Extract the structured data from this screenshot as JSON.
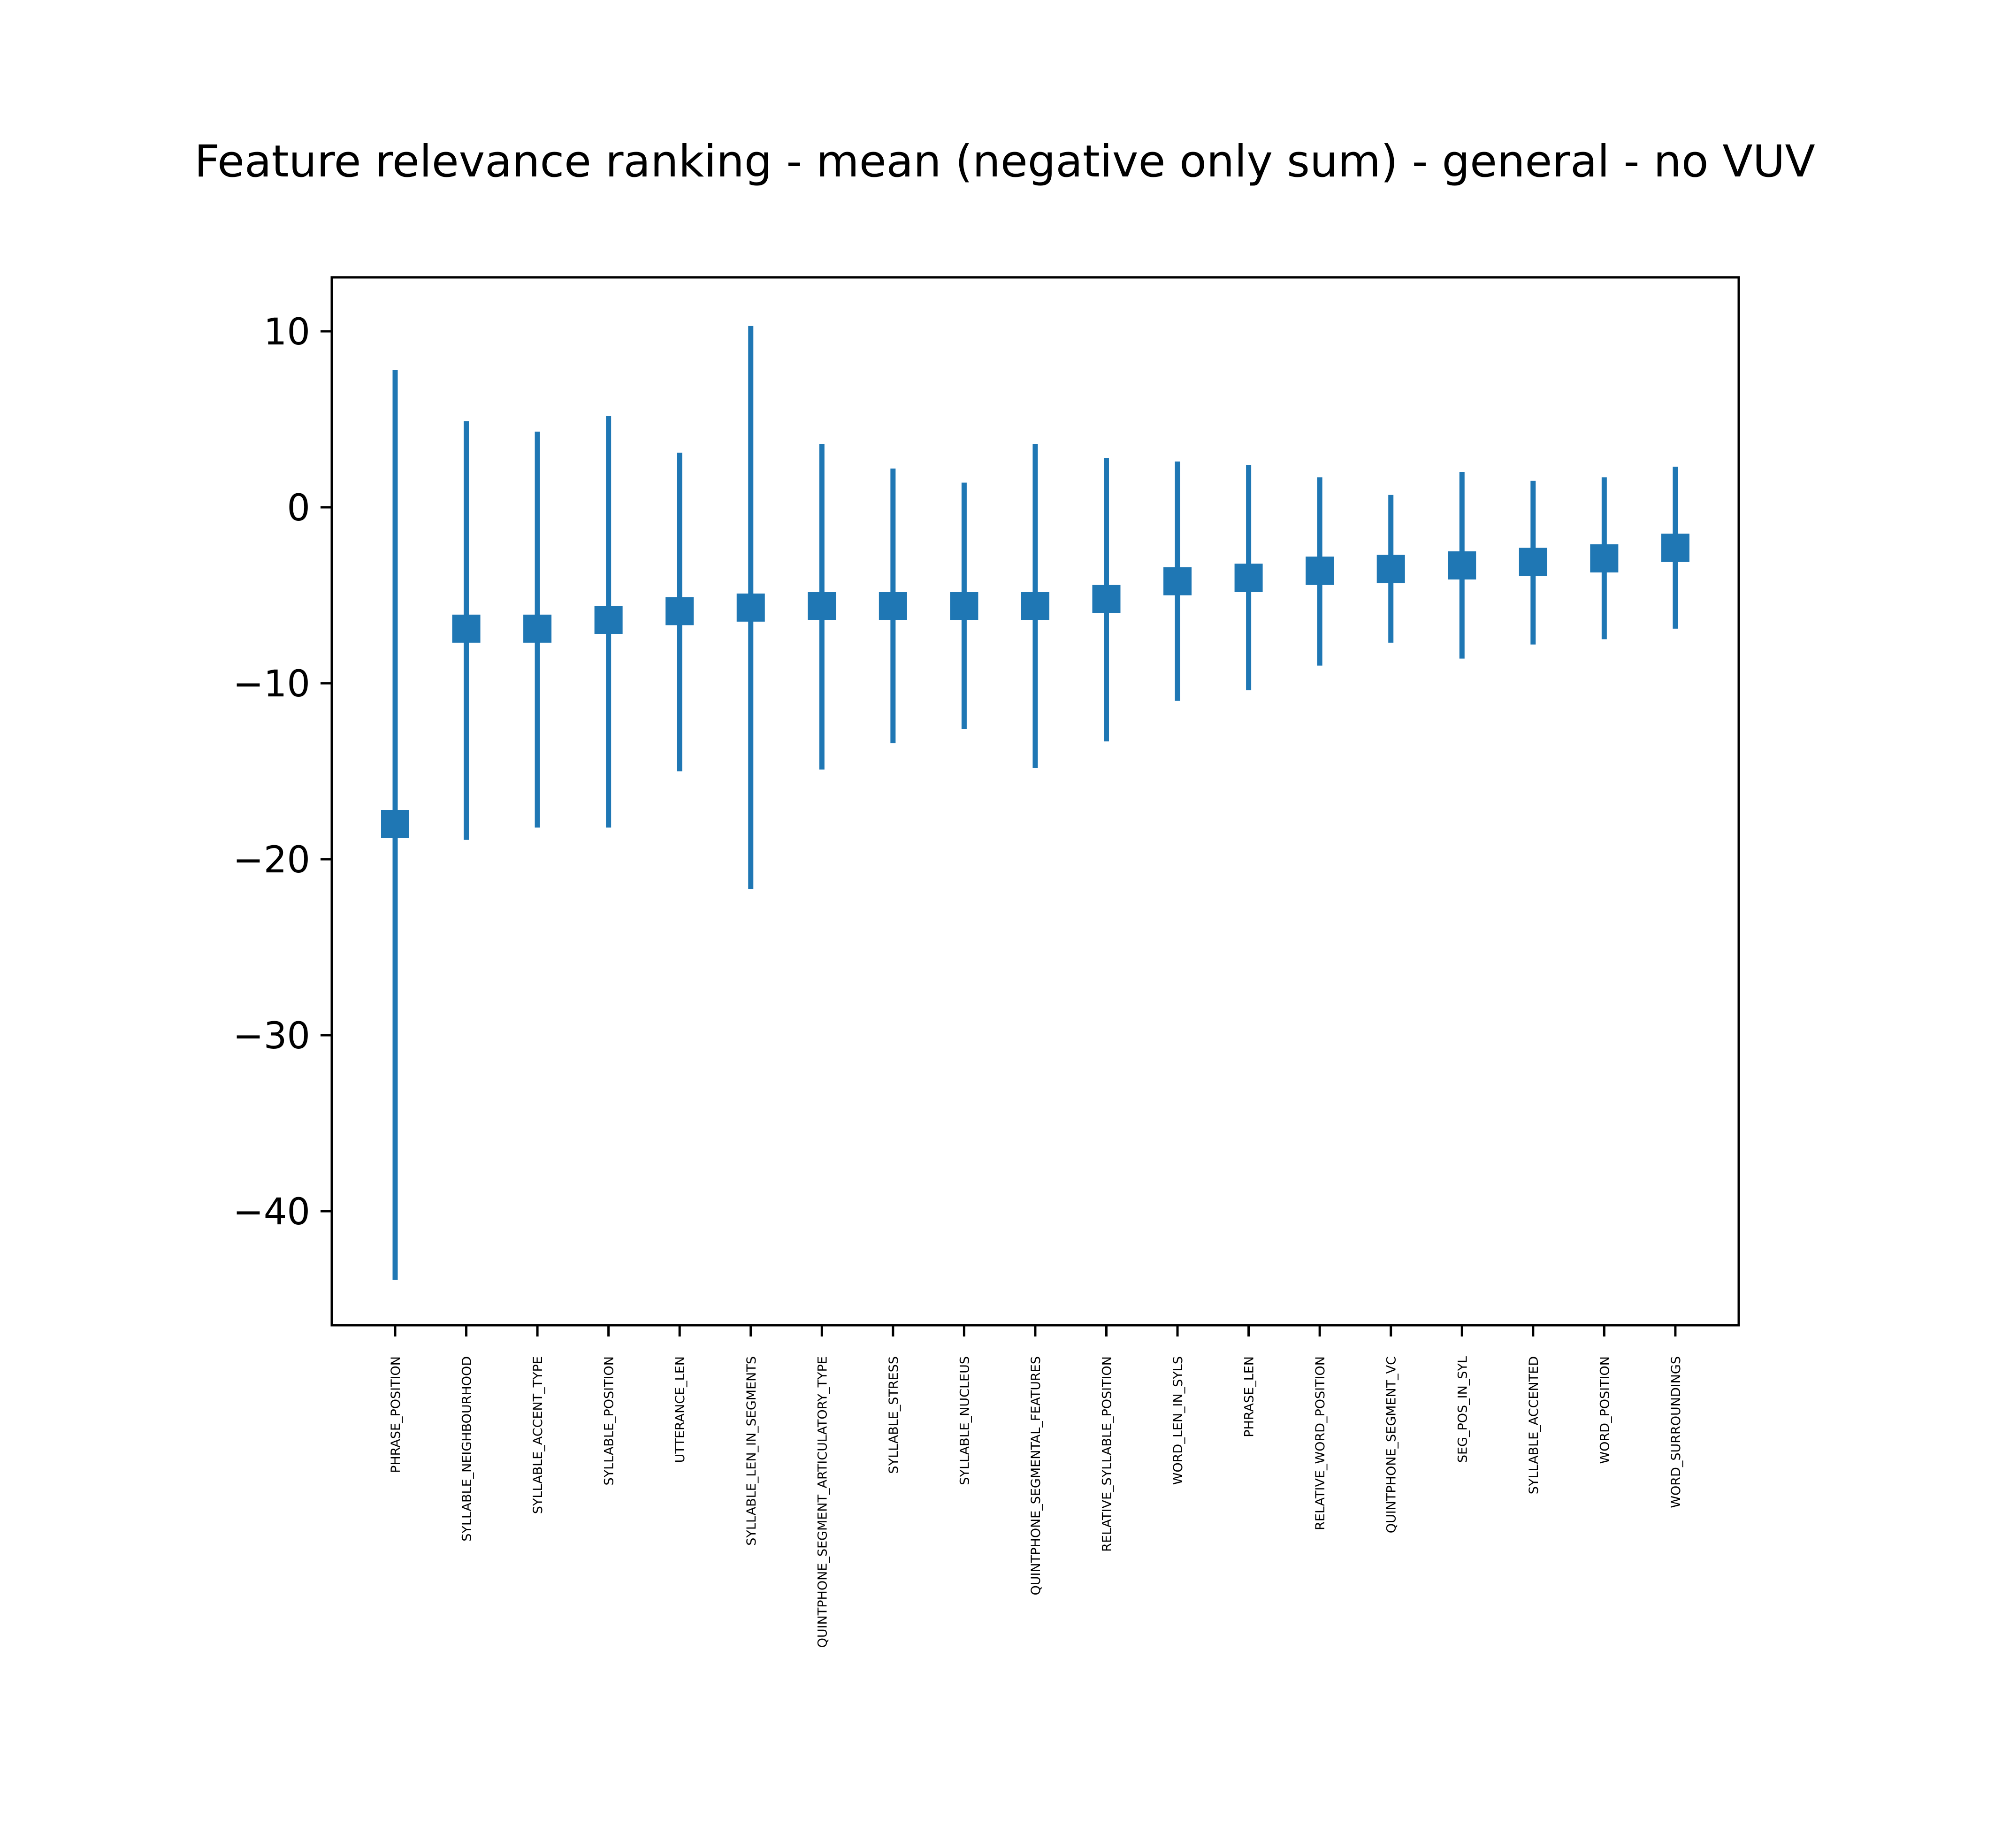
{
  "chart_data": {
    "type": "errorbar",
    "title": "Feature relevance ranking - mean (negative only sum) - general - no VUV",
    "xlabel": "",
    "ylabel": "",
    "ylim": [
      -46.5,
      13.1
    ],
    "yticks": [
      10,
      0,
      -10,
      -20,
      -30,
      -40
    ],
    "ytick_labels": [
      "10",
      "0",
      "−10",
      "−20",
      "−30",
      "−40"
    ],
    "grid": false,
    "color": "#1f77b4",
    "categories": [
      "PHRASE_POSITION",
      "SYLLABLE_NEIGHBOURHOOD",
      "SYLLABLE_ACCENT_TYPE",
      "SYLLABLE_POSITION",
      "UTTERANCE_LEN",
      "SYLLABLE_LEN_IN_SEGMENTS",
      "QUINTPHONE_SEGMENT_ARTICULATORY_TYPE",
      "SYLLABLE_STRESS",
      "SYLLABLE_NUCLEUS",
      "QUINTPHONE_SEGMENTAL_FEATURES",
      "RELATIVE_SYLLABLE_POSITION",
      "WORD_LEN_IN_SYLS",
      "PHRASE_LEN",
      "RELATIVE_WORD_POSITION",
      "QUINTPHONE_SEGMENT_VC",
      "SEG_POS_IN_SYL",
      "SYLLABLE_ACCENTED",
      "WORD_POSITION",
      "WORD_SURROUNDINGS"
    ],
    "mean": [
      -18.0,
      -6.9,
      -6.9,
      -6.4,
      -5.9,
      -5.7,
      -5.6,
      -5.6,
      -5.6,
      -5.6,
      -5.2,
      -4.2,
      -4.0,
      -3.6,
      -3.5,
      -3.3,
      -3.1,
      -2.9,
      -2.3
    ],
    "upper": [
      7.8,
      4.9,
      4.3,
      5.2,
      3.1,
      10.3,
      3.6,
      2.2,
      1.4,
      3.6,
      2.8,
      2.6,
      2.4,
      1.7,
      0.7,
      2.0,
      1.5,
      1.7,
      2.3
    ],
    "lower": [
      -43.9,
      -18.9,
      -18.2,
      -18.2,
      -15.0,
      -21.7,
      -14.9,
      -13.4,
      -12.6,
      -14.8,
      -13.3,
      -11.0,
      -10.4,
      -9.0,
      -7.7,
      -8.6,
      -7.8,
      -7.5,
      -6.9
    ]
  }
}
